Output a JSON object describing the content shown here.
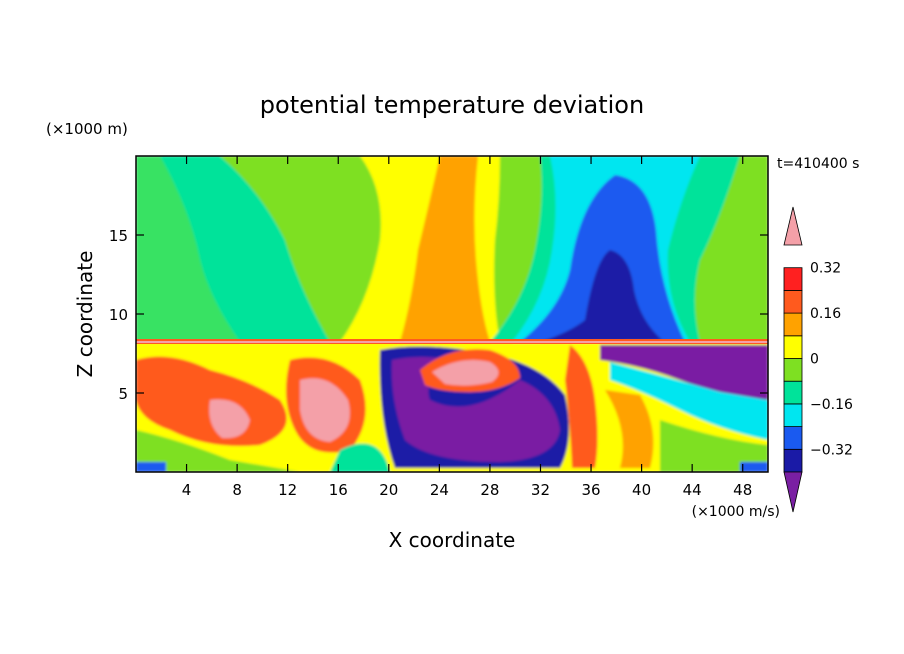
{
  "chart_data": {
    "type": "heatmap",
    "title": "potential temperature deviation",
    "xlabel": "X coordinate",
    "ylabel": "Z coordinate",
    "x_unit": "(×1000 m/s)",
    "y_unit": "(×1000 m)",
    "time_label": "t=410400 s",
    "xlim": [
      0,
      50
    ],
    "ylim": [
      0,
      20
    ],
    "x_ticks": [
      4,
      8,
      12,
      16,
      20,
      24,
      28,
      32,
      36,
      40,
      44,
      48
    ],
    "y_ticks": [
      5,
      10,
      15
    ],
    "colorbar": {
      "levels": [
        -0.4,
        -0.32,
        -0.24,
        -0.16,
        -0.08,
        0,
        0.08,
        0.16,
        0.24,
        0.32,
        0.4
      ],
      "tick_labels": [
        "0.32",
        "0.16",
        "0",
        "−0.16",
        "−0.32"
      ],
      "tick_values": [
        0.32,
        0.16,
        0,
        -0.16,
        -0.32
      ],
      "colors": [
        "#7a1fa3",
        "#1a1aa6",
        "#1a5af0",
        "#00e6f0",
        "#00e39a",
        "#7ee022",
        "#ffff00",
        "#ffa200",
        "#ff5a1e",
        "#ff2020",
        "#f4a0a8"
      ]
    },
    "features": [
      {
        "label": "upper warm plume",
        "x_range": [
          20,
          28
        ],
        "z_range": [
          8.4,
          20
        ],
        "value": 0.2
      },
      {
        "label": "upper cold plume",
        "x_range": [
          30,
          42
        ],
        "z_range": [
          8.4,
          18
        ],
        "value": -0.3
      },
      {
        "label": "interface",
        "z": 8.3
      },
      {
        "label": "lower cold eddy",
        "x_range": [
          20,
          34
        ],
        "z_range": [
          0.5,
          7.5
        ],
        "value": -0.38
      }
    ]
  }
}
